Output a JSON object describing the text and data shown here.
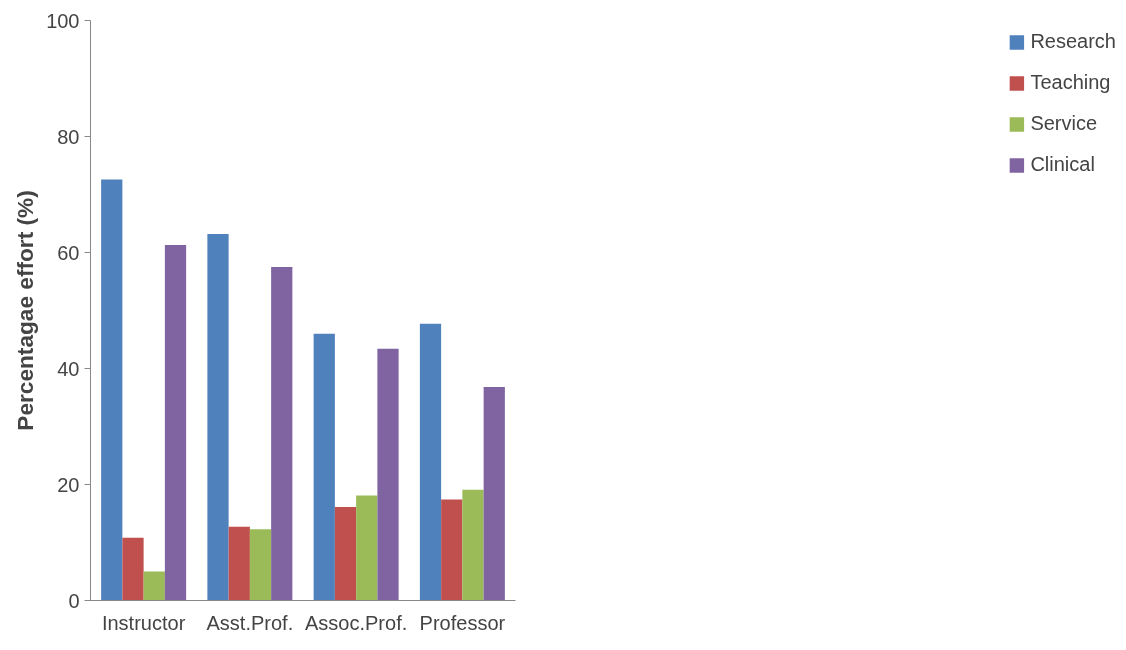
{
  "chart_data": {
    "type": "bar",
    "ylabel": "Percentagae effort (%)",
    "categories": [
      "Instructor",
      "Asst.Prof.",
      "Assoc.Prof.",
      "Professor"
    ],
    "series": [
      {
        "name": "Research",
        "color": "#4f81bd",
        "values": [
          72.6,
          63.2,
          46.0,
          47.7
        ]
      },
      {
        "name": "Teaching",
        "color": "#c0504d",
        "values": [
          10.8,
          12.7,
          16.1,
          17.4
        ]
      },
      {
        "name": "Service",
        "color": "#9bbb59",
        "values": [
          5.0,
          12.3,
          18.1,
          19.1
        ]
      },
      {
        "name": "Clinical",
        "color": "#8064a2",
        "values": [
          61.3,
          57.5,
          43.4,
          36.8
        ]
      }
    ],
    "ylim": [
      0,
      100
    ],
    "yticks": [
      0,
      20,
      40,
      60,
      80,
      100
    ],
    "grid": false,
    "legend": "right"
  }
}
